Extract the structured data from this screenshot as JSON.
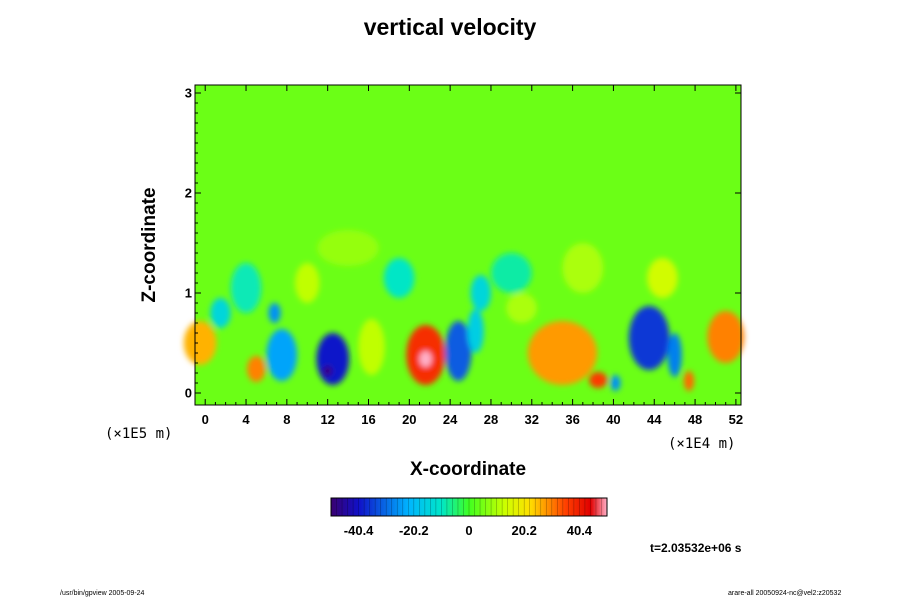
{
  "chart_data": {
    "type": "heatmap",
    "title": "vertical velocity",
    "xlabel": "X-coordinate",
    "ylabel": "Z-coordinate",
    "x_unit": "(×1E4 m)",
    "y_unit": "(×1E5 m)",
    "xlim": [
      -1,
      52.5
    ],
    "ylim": [
      -0.12,
      3.08
    ],
    "x_ticks": [
      "0",
      "4",
      "8",
      "12",
      "16",
      "20",
      "24",
      "28",
      "32",
      "36",
      "40",
      "44",
      "48",
      "52"
    ],
    "y_ticks": [
      "0",
      "1",
      "2",
      "3"
    ],
    "colorbar": {
      "range": [
        -50.5,
        50.5
      ],
      "tick_labels": [
        "-40.4",
        "-20.2",
        "0",
        "20.2",
        "40.4"
      ],
      "tick_values": [
        -40.4,
        -20.2,
        0,
        20.2,
        40.4
      ]
    },
    "background_value": 4,
    "features": [
      {
        "x": -0.5,
        "z": 0.5,
        "rx": 1.6,
        "rz": 0.22,
        "value": 26
      },
      {
        "x": 5.0,
        "z": 0.24,
        "rx": 0.9,
        "rz": 0.13,
        "value": 30
      },
      {
        "x": 7.5,
        "z": 0.38,
        "rx": 1.5,
        "rz": 0.26,
        "value": -24
      },
      {
        "x": 6.8,
        "z": 0.8,
        "rx": 0.6,
        "rz": 0.1,
        "value": -26
      },
      {
        "x": 12.5,
        "z": 0.34,
        "rx": 1.6,
        "rz": 0.26,
        "value": -40
      },
      {
        "x": 12.0,
        "z": 0.22,
        "rx": 0.4,
        "rz": 0.05,
        "value": -55
      },
      {
        "x": 16.3,
        "z": 0.46,
        "rx": 1.3,
        "rz": 0.28,
        "value": 12
      },
      {
        "x": 21.6,
        "z": 0.38,
        "rx": 1.9,
        "rz": 0.3,
        "value": 38
      },
      {
        "x": 21.6,
        "z": 0.34,
        "rx": 0.6,
        "rz": 0.08,
        "value": 55
      },
      {
        "x": 24.8,
        "z": 0.42,
        "rx": 1.3,
        "rz": 0.3,
        "value": -32
      },
      {
        "x": 26.5,
        "z": 0.62,
        "rx": 0.8,
        "rz": 0.22,
        "value": -16
      },
      {
        "x": 35.0,
        "z": 0.4,
        "rx": 3.4,
        "rz": 0.32,
        "value": 28
      },
      {
        "x": 38.5,
        "z": 0.13,
        "rx": 0.9,
        "rz": 0.08,
        "value": 36
      },
      {
        "x": 40.2,
        "z": 0.1,
        "rx": 0.5,
        "rz": 0.08,
        "value": -26
      },
      {
        "x": 43.5,
        "z": 0.55,
        "rx": 2.0,
        "rz": 0.32,
        "value": -36
      },
      {
        "x": 46.0,
        "z": 0.38,
        "rx": 0.7,
        "rz": 0.22,
        "value": -28
      },
      {
        "x": 47.4,
        "z": 0.12,
        "rx": 0.5,
        "rz": 0.1,
        "value": 32
      },
      {
        "x": 51.0,
        "z": 0.56,
        "rx": 1.8,
        "rz": 0.26,
        "value": 30
      },
      {
        "x": 44.8,
        "z": 1.15,
        "rx": 1.5,
        "rz": 0.2,
        "value": 14
      },
      {
        "x": 4.0,
        "z": 1.05,
        "rx": 1.5,
        "rz": 0.25,
        "value": -9
      },
      {
        "x": 10.0,
        "z": 1.1,
        "rx": 1.2,
        "rz": 0.2,
        "value": 12
      },
      {
        "x": 19.0,
        "z": 1.15,
        "rx": 1.5,
        "rz": 0.2,
        "value": -10
      },
      {
        "x": 30.0,
        "z": 1.2,
        "rx": 2.0,
        "rz": 0.2,
        "value": -8
      },
      {
        "x": 37.0,
        "z": 1.25,
        "rx": 2.0,
        "rz": 0.25,
        "value": 10
      },
      {
        "x": 14.0,
        "z": 1.45,
        "rx": 3.0,
        "rz": 0.18,
        "value": 8
      },
      {
        "x": 27.0,
        "z": 1.0,
        "rx": 1.0,
        "rz": 0.18,
        "value": -14
      },
      {
        "x": 1.5,
        "z": 0.8,
        "rx": 1.0,
        "rz": 0.15,
        "value": -14
      },
      {
        "x": 31.0,
        "z": 0.85,
        "rx": 1.5,
        "rz": 0.15,
        "value": 10
      }
    ],
    "time_label": "t=2.03532e+06 s"
  },
  "footer": {
    "left": "/usr/bin/gpview 2005-09-24",
    "right": "arare-all 20050924-nc@vel2:z20532"
  }
}
